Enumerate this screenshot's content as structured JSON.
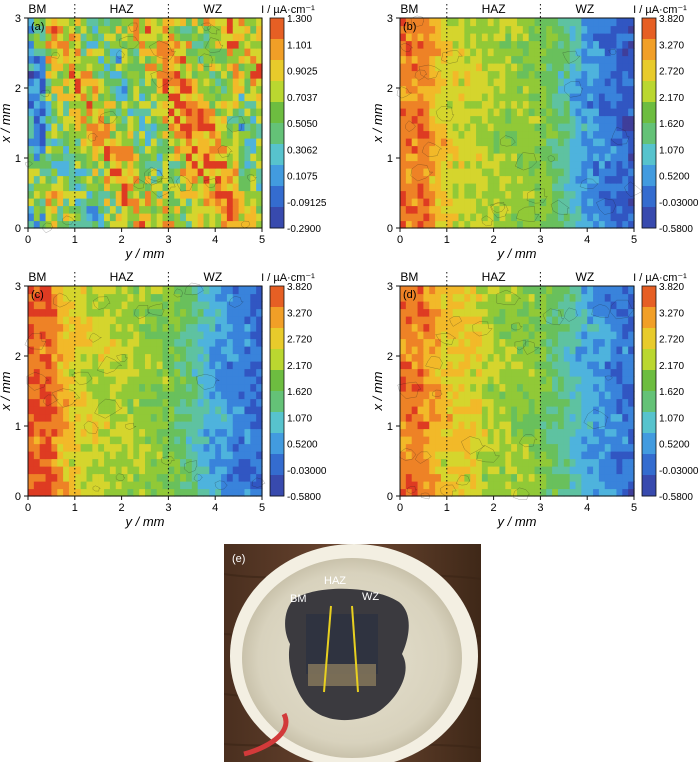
{
  "chart_data": [
    {
      "type": "heatmap",
      "panel_label": "(a)",
      "regions": [
        "BM",
        "HAZ",
        "WZ"
      ],
      "region_boundaries_y_mm": [
        1,
        3
      ],
      "xlabel": "y / mm",
      "ylabel": "x / mm",
      "x_ticks": [
        "0",
        "1",
        "2",
        "3",
        "4",
        "5"
      ],
      "y_ticks": [
        "0",
        "1",
        "2",
        "3"
      ],
      "xlim": [
        0,
        5
      ],
      "ylim": [
        0,
        3
      ],
      "colorbar": {
        "title": "I / µA·cm⁻¹",
        "ticks": [
          "1.300",
          "1.101",
          "0.9025",
          "0.7037",
          "0.5050",
          "0.3062",
          "0.1075",
          "-0.09125",
          "-0.2900"
        ],
        "min": -0.29,
        "max": 1.3
      },
      "pattern": "noisy current density mostly 0.5–0.9 across the whole scan, higher (≈1.0–1.3) in the weld zone y≈3–4.5 mm, lower (≈0–0.3) near y≈0–0.3 mm"
    },
    {
      "type": "heatmap",
      "panel_label": "(b)",
      "regions": [
        "BM",
        "HAZ",
        "WZ"
      ],
      "region_boundaries_y_mm": [
        1,
        3
      ],
      "xlabel": "y / mm",
      "ylabel": "x / mm",
      "x_ticks": [
        "0",
        "1",
        "2",
        "3",
        "4",
        "5"
      ],
      "y_ticks": [
        "0",
        "1",
        "2",
        "3"
      ],
      "xlim": [
        0,
        5
      ],
      "ylim": [
        0,
        3
      ],
      "colorbar": {
        "title": "I / µA·cm⁻¹",
        "ticks": [
          "3.820",
          "3.270",
          "2.720",
          "2.170",
          "1.620",
          "1.070",
          "0.5200",
          "-0.03000",
          "-0.5800"
        ],
        "min": -0.58,
        "max": 3.82
      },
      "pattern": "current decreases from ≈3.8 at BM (y≈0.2) to ≈2.2 in HAZ, ≈1.6 near y=3, and ≈0 in the weld zone (y≈4–5)"
    },
    {
      "type": "heatmap",
      "panel_label": "(c)",
      "regions": [
        "BM",
        "HAZ",
        "WZ"
      ],
      "region_boundaries_y_mm": [
        1,
        3
      ],
      "xlabel": "y / mm",
      "ylabel": "x / mm",
      "x_ticks": [
        "0",
        "1",
        "2",
        "3",
        "4",
        "5"
      ],
      "y_ticks": [
        "0",
        "1",
        "2",
        "3"
      ],
      "xlim": [
        0,
        5
      ],
      "ylim": [
        0,
        3
      ],
      "colorbar": {
        "title": "I / µA·cm⁻¹",
        "ticks": [
          "3.820",
          "3.270",
          "2.720",
          "2.170",
          "1.620",
          "1.070",
          "0.5200",
          "-0.03000",
          "-0.5800"
        ],
        "min": -0.58,
        "max": 3.82
      },
      "pattern": "current ≈3.5–3.8 at BM (y≈0–0.5), ≈2.2–2.7 in HAZ, ≈1.6 near y=3, ≈0.5 to -0.3 in the weld zone (y≈4–5)"
    },
    {
      "type": "heatmap",
      "panel_label": "(d)",
      "regions": [
        "BM",
        "HAZ",
        "WZ"
      ],
      "region_boundaries_y_mm": [
        1,
        3
      ],
      "xlabel": "y / mm",
      "ylabel": "x / mm",
      "x_ticks": [
        "0",
        "1",
        "2",
        "3",
        "4",
        "5"
      ],
      "y_ticks": [
        "0",
        "1",
        "2",
        "3"
      ],
      "xlim": [
        0,
        5
      ],
      "ylim": [
        0,
        3
      ],
      "colorbar": {
        "title": "I / µA·cm⁻¹",
        "ticks": [
          "3.820",
          "3.270",
          "2.720",
          "2.170",
          "1.620",
          "1.070",
          "0.5200",
          "-0.03000",
          "-0.5800"
        ],
        "min": -0.58,
        "max": 3.82
      },
      "pattern": "current ≈3.3–3.8 at BM (y≈0–0.7), ≈2.5 in HAZ near y≈1.2–1.6, ≈1.6–2.0 around y≈2–3, ≈0.5 to -0.3 in the weld zone (y≈4–5)"
    }
  ],
  "photo": {
    "panel_label": "(e)",
    "labels": [
      "BM",
      "HAZ",
      "WZ"
    ]
  }
}
